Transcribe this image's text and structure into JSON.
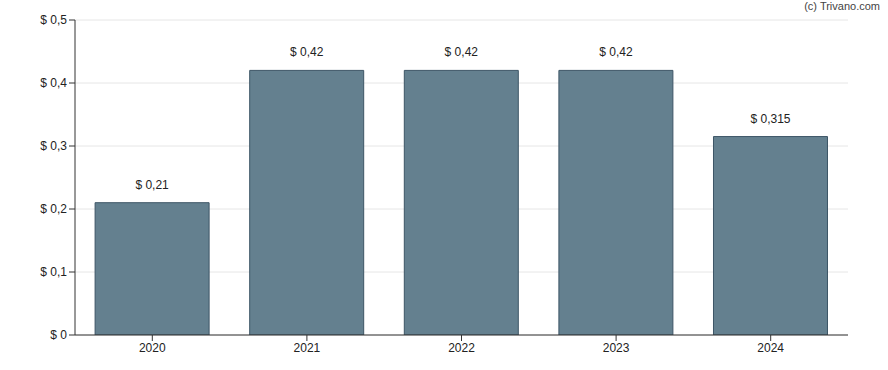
{
  "chart_data": {
    "type": "bar",
    "annotation": "(c) Trivano.com",
    "categories": [
      "2020",
      "2021",
      "2022",
      "2023",
      "2024"
    ],
    "values": [
      0.21,
      0.42,
      0.42,
      0.42,
      0.315
    ],
    "value_labels": [
      "$ 0,21",
      "$ 0,42",
      "$ 0,42",
      "$ 0,42",
      "$ 0,315"
    ],
    "data_labels": true,
    "color": "#64808f",
    "ylim": [
      0,
      0.5
    ],
    "yticks": [
      {
        "value": 0,
        "label": "$ 0"
      },
      {
        "value": 0.1,
        "label": "$ 0,1"
      },
      {
        "value": 0.2,
        "label": "$ 0,2"
      },
      {
        "value": 0.3,
        "label": "$ 0,3"
      },
      {
        "value": 0.4,
        "label": "$ 0,4"
      },
      {
        "value": 0.5,
        "label": "$ 0,5"
      }
    ],
    "grid": true
  }
}
